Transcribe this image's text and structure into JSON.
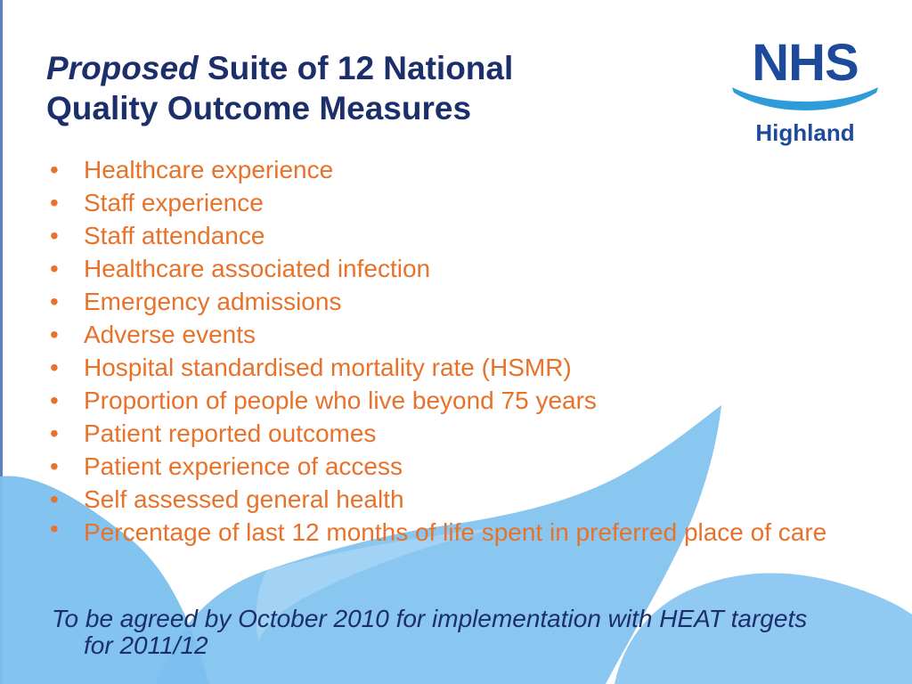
{
  "title": {
    "emphasis": "Proposed",
    "rest_line1": " Suite of 12 National",
    "line2": "Quality Outcome Measures"
  },
  "logo": {
    "wordmark": "NHS",
    "region": "Highland",
    "brand_color": "#1e4a9c",
    "wave_color": "#2d9cd8"
  },
  "bullets": [
    "Healthcare experience",
    "Staff experience",
    "Staff attendance",
    "Healthcare associated infection",
    "Emergency admissions",
    "Adverse events",
    "Hospital standardised mortality rate (HSMR)",
    "Proportion of people who live beyond 75 years",
    "Patient reported outcomes",
    "Patient experience of access",
    "Self assessed general health",
    "Percentage of last 12 months of life spent in preferred place of care"
  ],
  "bullet_glyph": "•",
  "footnote": "To be agreed by October 2010 for implementation with HEAT targets for 2011/12",
  "colors": {
    "title": "#1c2f6b",
    "bullets": "#e8722a",
    "wave": "#7cc0ee"
  }
}
